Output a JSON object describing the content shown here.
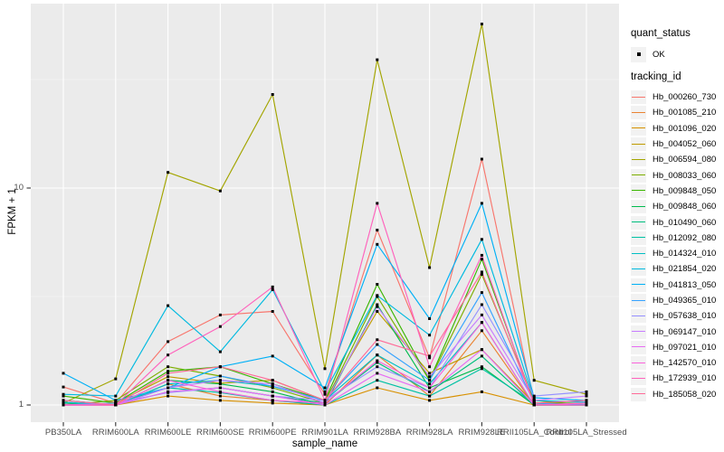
{
  "chart_data": {
    "type": "line",
    "title": "",
    "xlabel": "sample_name",
    "ylabel": "FPKM + 1",
    "y_scale": "log10",
    "ylim": [
      0.83,
      70
    ],
    "grid": true,
    "legend_position": "right",
    "y_major_ticks": [
      {
        "label": "1",
        "value": 1
      },
      {
        "label": "10",
        "value": 10
      }
    ],
    "y_minor_values": [
      3.1623,
      31.623
    ],
    "categories": [
      "PB350LA",
      "RRIM600LA",
      "RRIM600LE",
      "RRIM600SE",
      "RRIM600PE",
      "RRIM901LA",
      "RRIM928BA",
      "RRIM928LA",
      "RRIM928LE",
      "RRII105LA_Control",
      "RRII105LA_Stressed"
    ],
    "quant_status": {
      "title": "quant_status",
      "items": [
        {
          "label": "OK",
          "marker": "black-point"
        }
      ]
    },
    "tracking_legend_title": "tracking_id",
    "series": [
      {
        "name": "Hb_000260_730",
        "color": "#F8766D",
        "values": [
          1.21,
          1.02,
          1.96,
          2.6,
          2.7,
          1.12,
          6.4,
          1.65,
          13.6,
          1.02,
          1.05
        ]
      },
      {
        "name": "Hb_001085_210",
        "color": "#EA8331",
        "values": [
          1.02,
          1.0,
          1.25,
          1.1,
          1.05,
          1.0,
          1.7,
          1.1,
          2.2,
          1.0,
          1.0
        ]
      },
      {
        "name": "Hb_001096_020",
        "color": "#D89000",
        "values": [
          1.0,
          1.0,
          1.1,
          1.05,
          1.02,
          1.0,
          1.2,
          1.05,
          1.15,
          1.0,
          1.0
        ]
      },
      {
        "name": "Hb_004052_060",
        "color": "#C09B00",
        "values": [
          1.0,
          1.02,
          1.35,
          1.26,
          1.3,
          1.05,
          2.7,
          1.4,
          1.8,
          1.02,
          1.0
        ]
      },
      {
        "name": "Hb_006594_080",
        "color": "#A3A500",
        "values": [
          1.02,
          1.32,
          11.8,
          9.7,
          27.0,
          1.47,
          39.0,
          4.3,
          57.0,
          1.3,
          1.12
        ]
      },
      {
        "name": "Hb_008033_060",
        "color": "#7CAE00",
        "values": [
          1.0,
          1.05,
          1.5,
          1.36,
          1.2,
          1.02,
          3.16,
          1.3,
          4.0,
          1.05,
          1.0
        ]
      },
      {
        "name": "Hb_009848_050",
        "color": "#39B600",
        "values": [
          1.1,
          1.02,
          1.43,
          1.5,
          1.25,
          1.05,
          3.6,
          1.3,
          4.7,
          1.02,
          1.02
        ]
      },
      {
        "name": "Hb_009848_060",
        "color": "#00BB4E",
        "values": [
          1.05,
          1.0,
          1.3,
          1.25,
          1.15,
          1.0,
          2.9,
          1.2,
          1.5,
          1.0,
          1.0
        ]
      },
      {
        "name": "Hb_010490_060",
        "color": "#00BF7D",
        "values": [
          1.02,
          1.0,
          1.15,
          1.2,
          1.1,
          1.02,
          1.57,
          1.15,
          1.68,
          1.0,
          1.0
        ]
      },
      {
        "name": "Hb_012092_080",
        "color": "#00C1A3",
        "values": [
          1.0,
          1.02,
          1.2,
          1.14,
          1.05,
          1.0,
          1.3,
          1.1,
          1.47,
          1.02,
          1.0
        ]
      },
      {
        "name": "Hb_014324_010",
        "color": "#00BFC4",
        "values": [
          1.03,
          1.0,
          1.25,
          1.3,
          1.22,
          1.05,
          1.7,
          1.25,
          2.4,
          1.0,
          1.02
        ]
      },
      {
        "name": "Hb_021854_020",
        "color": "#00BAE0",
        "values": [
          1.12,
          1.1,
          2.87,
          1.76,
          3.4,
          1.15,
          3.2,
          2.1,
          5.8,
          1.05,
          1.03
        ]
      },
      {
        "name": "Hb_041813_050",
        "color": "#00B0F6",
        "values": [
          1.4,
          1.05,
          1.2,
          1.5,
          1.68,
          1.2,
          5.5,
          2.5,
          8.5,
          1.08,
          1.05
        ]
      },
      {
        "name": "Hb_049365_010",
        "color": "#35A2FF",
        "values": [
          1.05,
          1.0,
          1.2,
          1.36,
          1.22,
          1.05,
          1.9,
          1.3,
          3.3,
          1.02,
          1.0
        ]
      },
      {
        "name": "Hb_057638_010",
        "color": "#9590FF",
        "values": [
          1.0,
          1.02,
          1.14,
          1.2,
          1.1,
          1.05,
          1.5,
          1.2,
          2.9,
          1.1,
          1.15
        ]
      },
      {
        "name": "Hb_069147_010",
        "color": "#C77CFF",
        "values": [
          1.0,
          1.0,
          1.2,
          1.3,
          1.25,
          1.02,
          2.84,
          1.35,
          2.6,
          1.05,
          1.1
        ]
      },
      {
        "name": "Hb_097021_010",
        "color": "#E76BF3",
        "values": [
          1.0,
          1.0,
          1.15,
          1.2,
          1.1,
          1.0,
          1.4,
          1.15,
          1.8,
          1.0,
          1.02
        ]
      },
      {
        "name": "Hb_142570_010",
        "color": "#FA62DB",
        "values": [
          1.0,
          1.0,
          1.3,
          1.15,
          1.05,
          1.02,
          1.6,
          1.2,
          2.4,
          1.0,
          1.0
        ]
      },
      {
        "name": "Hb_172939_010",
        "color": "#FF62BC",
        "values": [
          1.0,
          1.0,
          1.7,
          2.3,
          3.5,
          1.05,
          8.5,
          1.5,
          4.9,
          1.0,
          1.02
        ]
      },
      {
        "name": "Hb_185058_020",
        "color": "#FF6A98",
        "values": [
          1.05,
          1.0,
          1.4,
          1.5,
          1.3,
          1.05,
          2.0,
          1.68,
          4.1,
          1.02,
          1.05
        ]
      }
    ]
  },
  "colors": {
    "panel_bg": "#EBEBEB",
    "grid_major": "#FFFFFF",
    "grid_minor": "#F5F5F5",
    "tick_text": "#4D4D4D",
    "axis_title": "#000000",
    "point": "#000000",
    "legend_key_bg": "#F2F2F2",
    "tick_mark": "#333333"
  }
}
